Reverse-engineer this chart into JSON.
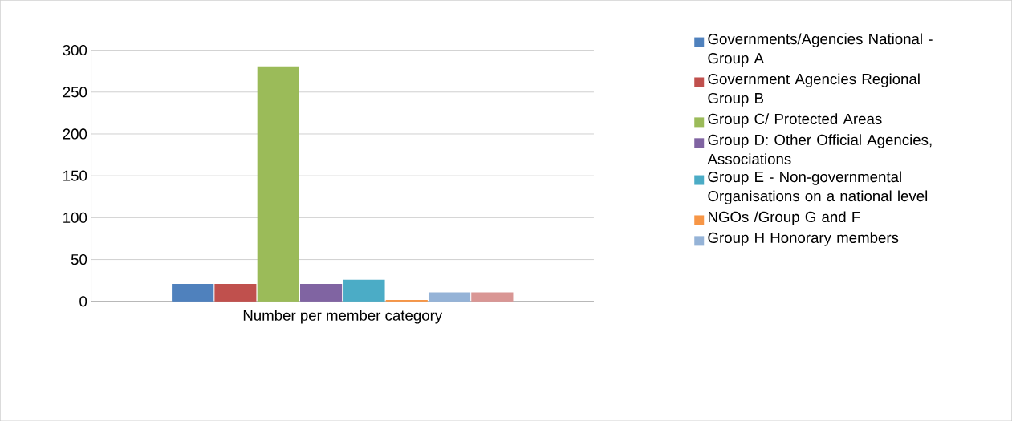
{
  "chart_data": {
    "type": "bar",
    "categories": [
      "Number per member category"
    ],
    "series": [
      {
        "name": "Governments/Agencies National - Group A",
        "color": "#4f81bd",
        "values": [
          20
        ]
      },
      {
        "name": "Government Agencies Regional Group B",
        "color": "#c0504d",
        "values": [
          20
        ]
      },
      {
        "name": "Group C/ Protected Areas",
        "color": "#9bbb59",
        "values": [
          280
        ]
      },
      {
        "name": "Group D: Other Official Agencies, Associations",
        "color": "#8064a2",
        "values": [
          20
        ]
      },
      {
        "name": "Group E - Non-governmental Organisations on a national level",
        "color": "#4bacc6",
        "values": [
          25
        ]
      },
      {
        "name": "NGOs /Group G and F",
        "color": "#f79646",
        "values": [
          1
        ]
      },
      {
        "name": "Group H Honorary members",
        "color": "#95b3d7",
        "values": [
          10
        ]
      },
      {
        "color": "#d99694",
        "values": [
          10
        ]
      }
    ],
    "ylim": [
      0,
      300
    ],
    "yticks": [
      0,
      50,
      100,
      150,
      200,
      250,
      300
    ],
    "grid": "y",
    "legend": "right"
  }
}
